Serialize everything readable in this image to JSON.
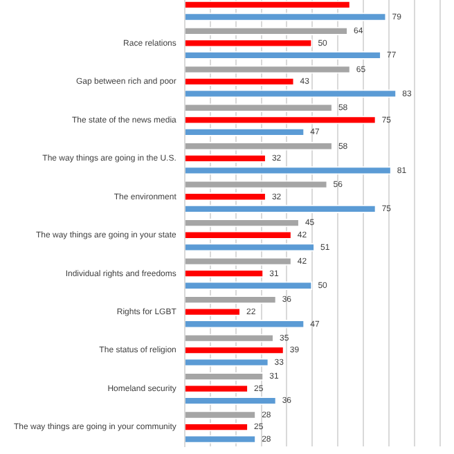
{
  "chart_data": {
    "type": "bar",
    "orientation": "horizontal",
    "categories": [
      null,
      "Race relations",
      "Gap between rich and poor",
      "The state of the news media",
      "The way things are going in the U.S.",
      "The environment",
      "The way things are going in your state",
      "Individual rights and freedoms",
      "Rights for LGBT",
      "The status of religion",
      "Homeland security",
      "The way things are going in your community"
    ],
    "series": [
      {
        "color": "#a5a5a5",
        "values": [
          null,
          64,
          65,
          58,
          58,
          56,
          45,
          42,
          36,
          35,
          31,
          28
        ],
        "value_labels": [
          null,
          "64",
          "65",
          "58",
          "58",
          "56",
          "45",
          "42",
          "36",
          "35",
          "31",
          "28"
        ]
      },
      {
        "color": "#ff0000",
        "values": [
          65,
          50,
          43,
          75,
          32,
          32,
          42,
          31,
          22,
          39,
          25,
          25
        ],
        "value_labels": [
          null,
          "50",
          "43",
          "75",
          "32",
          "32",
          "42",
          "31",
          "22",
          "39",
          "25",
          "25"
        ]
      },
      {
        "color": "#5b9bd5",
        "values": [
          79,
          77,
          83,
          47,
          81,
          75,
          51,
          50,
          47,
          33,
          36,
          28
        ],
        "value_labels": [
          "79",
          "77",
          "83",
          "47",
          "81",
          "75",
          "51",
          "50",
          "47",
          "33",
          "36",
          "28"
        ]
      }
    ],
    "xlim": [
      0,
      100
    ],
    "xticks": [
      {
        "value": 0,
        "label": null
      },
      {
        "value": 10,
        "label": null
      },
      {
        "value": 20,
        "label": null
      },
      {
        "value": 30,
        "label": null
      },
      {
        "value": 40,
        "label": null
      },
      {
        "value": 50,
        "label": null
      },
      {
        "value": 60,
        "label": null
      },
      {
        "value": 70,
        "label": null
      },
      {
        "value": 80,
        "label": null
      },
      {
        "value": 90,
        "label": null
      },
      {
        "value": 100,
        "label": null
      }
    ],
    "grid": "x",
    "tick_labels": "y",
    "legend": false
  }
}
